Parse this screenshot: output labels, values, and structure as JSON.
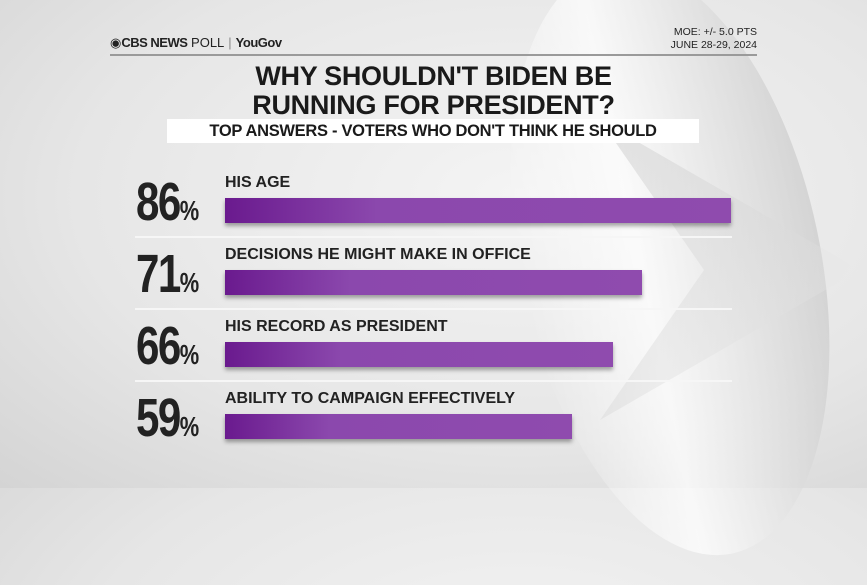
{
  "header": {
    "brand": "CBS NEWS",
    "brand_suffix": "POLL",
    "partner": "YouGov",
    "moe": "MOE: +/- 5.0 PTS",
    "dates": "JUNE 28-29, 2024"
  },
  "chart_data": {
    "type": "bar",
    "orientation": "horizontal",
    "title": "WHY SHOULDN'T BIDEN BE RUNNING FOR PRESIDENT?",
    "subtitle": "TOP ANSWERS - VOTERS WHO DON'T THINK HE SHOULD",
    "categories": [
      "HIS AGE",
      "DECISIONS HE MIGHT MAKE IN OFFICE",
      "HIS RECORD AS PRESIDENT",
      "ABILITY TO CAMPAIGN EFFECTIVELY"
    ],
    "values": [
      86,
      71,
      66,
      59
    ],
    "value_labels": [
      "86",
      "71",
      "66",
      "59"
    ],
    "unit": "%",
    "xlim": [
      0,
      100
    ],
    "bar_color": "#8b48ad",
    "grid": false
  }
}
